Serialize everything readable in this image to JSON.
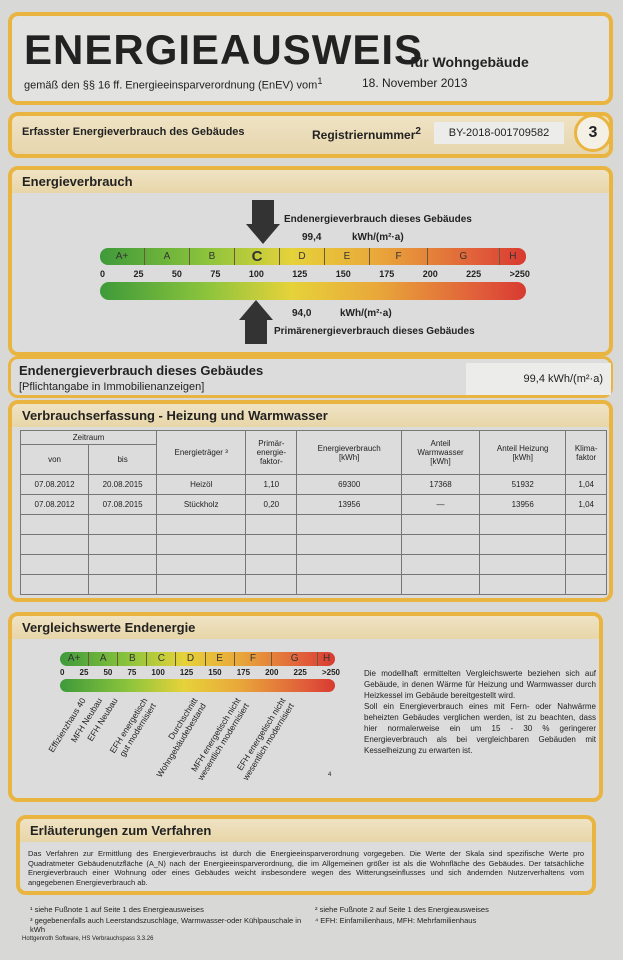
{
  "header": {
    "title": "ENERGIEAUSWEIS",
    "subtitle": "für Wohngebäude",
    "regulation": "gemäß den §§ 16 ff. Energieeinsparverordnung (EnEV) vom",
    "regulation_sup": "1",
    "date": "18. November 2013"
  },
  "registration": {
    "label": "Erfasster Energieverbrauch des Gebäudes",
    "reg_label": "Registriernummer",
    "reg_sup": "2",
    "reg_number": "BY-2018-001709582",
    "page": "3"
  },
  "energieverbrauch": {
    "title": "Energieverbrauch",
    "end_label": "Endenergieverbrauch dieses Gebäudes",
    "end_value": "99,4",
    "unit": "kWh/(m²·a)",
    "primary_value": "94,0",
    "primary_label": "Primärenergieverbrauch dieses Gebäudes",
    "classes": [
      "A+",
      "A",
      "B",
      "C",
      "D",
      "E",
      "F",
      "G",
      "H"
    ],
    "active_class": "C",
    "ticks": [
      "0",
      "25",
      "50",
      "75",
      "100",
      "125",
      "150",
      "175",
      "200",
      "225",
      ">250"
    ]
  },
  "endenergie": {
    "title": "Endenergieverbrauch dieses Gebäudes",
    "note": "[Pflichtangabe in Immobilienanzeigen]",
    "value": "99,4 kWh/(m²·a)"
  },
  "verbrauch": {
    "title": "Verbrauchserfassung - Heizung und Warmwasser",
    "headers": {
      "zeitraum": "Zeitraum",
      "von": "von",
      "bis": "bis",
      "traeger": "Energieträger ³",
      "faktor": "Primär-\nenergie-\nfaktor-",
      "verbrauch": "Energieverbrauch\n[kWh]",
      "warmwasser": "Anteil\nWarmwasser\n[kWh]",
      "heizung": "Anteil Heizung\n[kWh]",
      "klima": "Klima-\nfaktor"
    },
    "rows": [
      [
        "07.08.2012",
        "20.08.2015",
        "Heizöl",
        "1,10",
        "69300",
        "17368",
        "51932",
        "1,04"
      ],
      [
        "07.08.2012",
        "07.08.2015",
        "Stückholz",
        "0,20",
        "13956",
        "—",
        "13956",
        "1,04"
      ]
    ]
  },
  "vergleich": {
    "title": "Vergleichswerte Endenergie",
    "refs": [
      "Effizienzhaus 40",
      "MFH Neubau",
      "EFH Neubau",
      "EFH energetisch gut modernisiert",
      "Durchschnitt Wohngebäudebestand",
      "MFH energetisch nicht wesentlich modernisiert",
      "EFH energetisch nicht wesentlich modernisiert"
    ],
    "ref_sup": "4",
    "text1": "Die modellhaft ermittelten Vergleichswerte beziehen sich auf Gebäude, in denen Wärme für Heizung und Warmwasser durch Heizkessel im Gebäude bereitgestellt wird.",
    "text2": "Soll ein Energieverbrauch eines mit Fern- oder Nahwärme beheizten Gebäudes verglichen werden, ist zu beachten, dass hier normalerweise ein um 15 - 30 % geringerer Energieverbrauch als bei vergleichbaren Gebäuden mit Kesselheizung zu erwarten ist."
  },
  "erlaeuterung": {
    "title": "Erläuterungen zum Verfahren",
    "text": "Das Verfahren zur Ermittlung des Energieverbrauchs ist durch die Energieeinsparverordnung vorgegeben. Die Werte der Skala sind spezifische Werte pro Quadratmeter Gebäudenutzfläche (A_N) nach der Energieeinsparverordnung, die im Allgemeinen größer ist als die Wohnfläche des Gebäudes. Der tatsächliche Energieverbrauch einer Wohnung oder eines Gebäudes weicht insbesondere wegen des Witterungseinflusses und sich ändernden Nutzerverhaltens vom angegebenen Energieverbrauch ab."
  },
  "footnotes": [
    "¹  siehe Fußnote 1 auf Seite 1 des Energieausweises",
    "²  siehe Fußnote 2 auf Seite 1 des Energieausweises",
    "³  gegebenenfalls auch Leerstandszuschläge, Warmwasser-oder Kühlpauschale in kWh",
    "⁴  EFH: Einfamilienhaus, MFH: Mehrfamilienhaus"
  ],
  "software": "Hottgenroth Software, HS Verbrauchspass 3.3.26"
}
